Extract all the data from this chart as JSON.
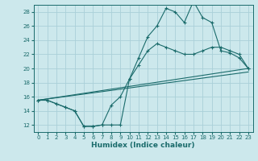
{
  "xlabel": "Humidex (Indice chaleur)",
  "bg_color": "#cce8ec",
  "grid_color": "#aad0d8",
  "line_color": "#1a6b6b",
  "xlim": [
    -0.5,
    23.5
  ],
  "ylim": [
    11,
    29
  ],
  "xticks": [
    0,
    1,
    2,
    3,
    4,
    5,
    6,
    7,
    8,
    9,
    10,
    11,
    12,
    13,
    14,
    15,
    16,
    17,
    18,
    19,
    20,
    21,
    22,
    23
  ],
  "yticks": [
    12,
    14,
    16,
    18,
    20,
    22,
    24,
    26,
    28
  ],
  "line1_y": [
    15.5,
    15.5,
    15.0,
    14.5,
    14.0,
    11.8,
    11.8,
    12.0,
    12.0,
    12.0,
    18.5,
    21.5,
    24.5,
    26.0,
    28.5,
    28.0,
    26.5,
    29.5,
    27.2,
    26.5,
    22.5,
    22.2,
    21.5,
    20.0
  ],
  "line2_y": [
    15.5,
    15.5,
    15.0,
    14.5,
    14.0,
    11.8,
    11.8,
    12.0,
    14.8,
    16.0,
    18.5,
    20.5,
    22.5,
    23.5,
    23.0,
    22.5,
    22.0,
    22.0,
    22.5,
    23.0,
    23.0,
    22.5,
    22.0,
    20.0
  ],
  "line3_y": [
    15.5,
    20.0
  ],
  "line4_y": [
    15.5,
    19.5
  ]
}
